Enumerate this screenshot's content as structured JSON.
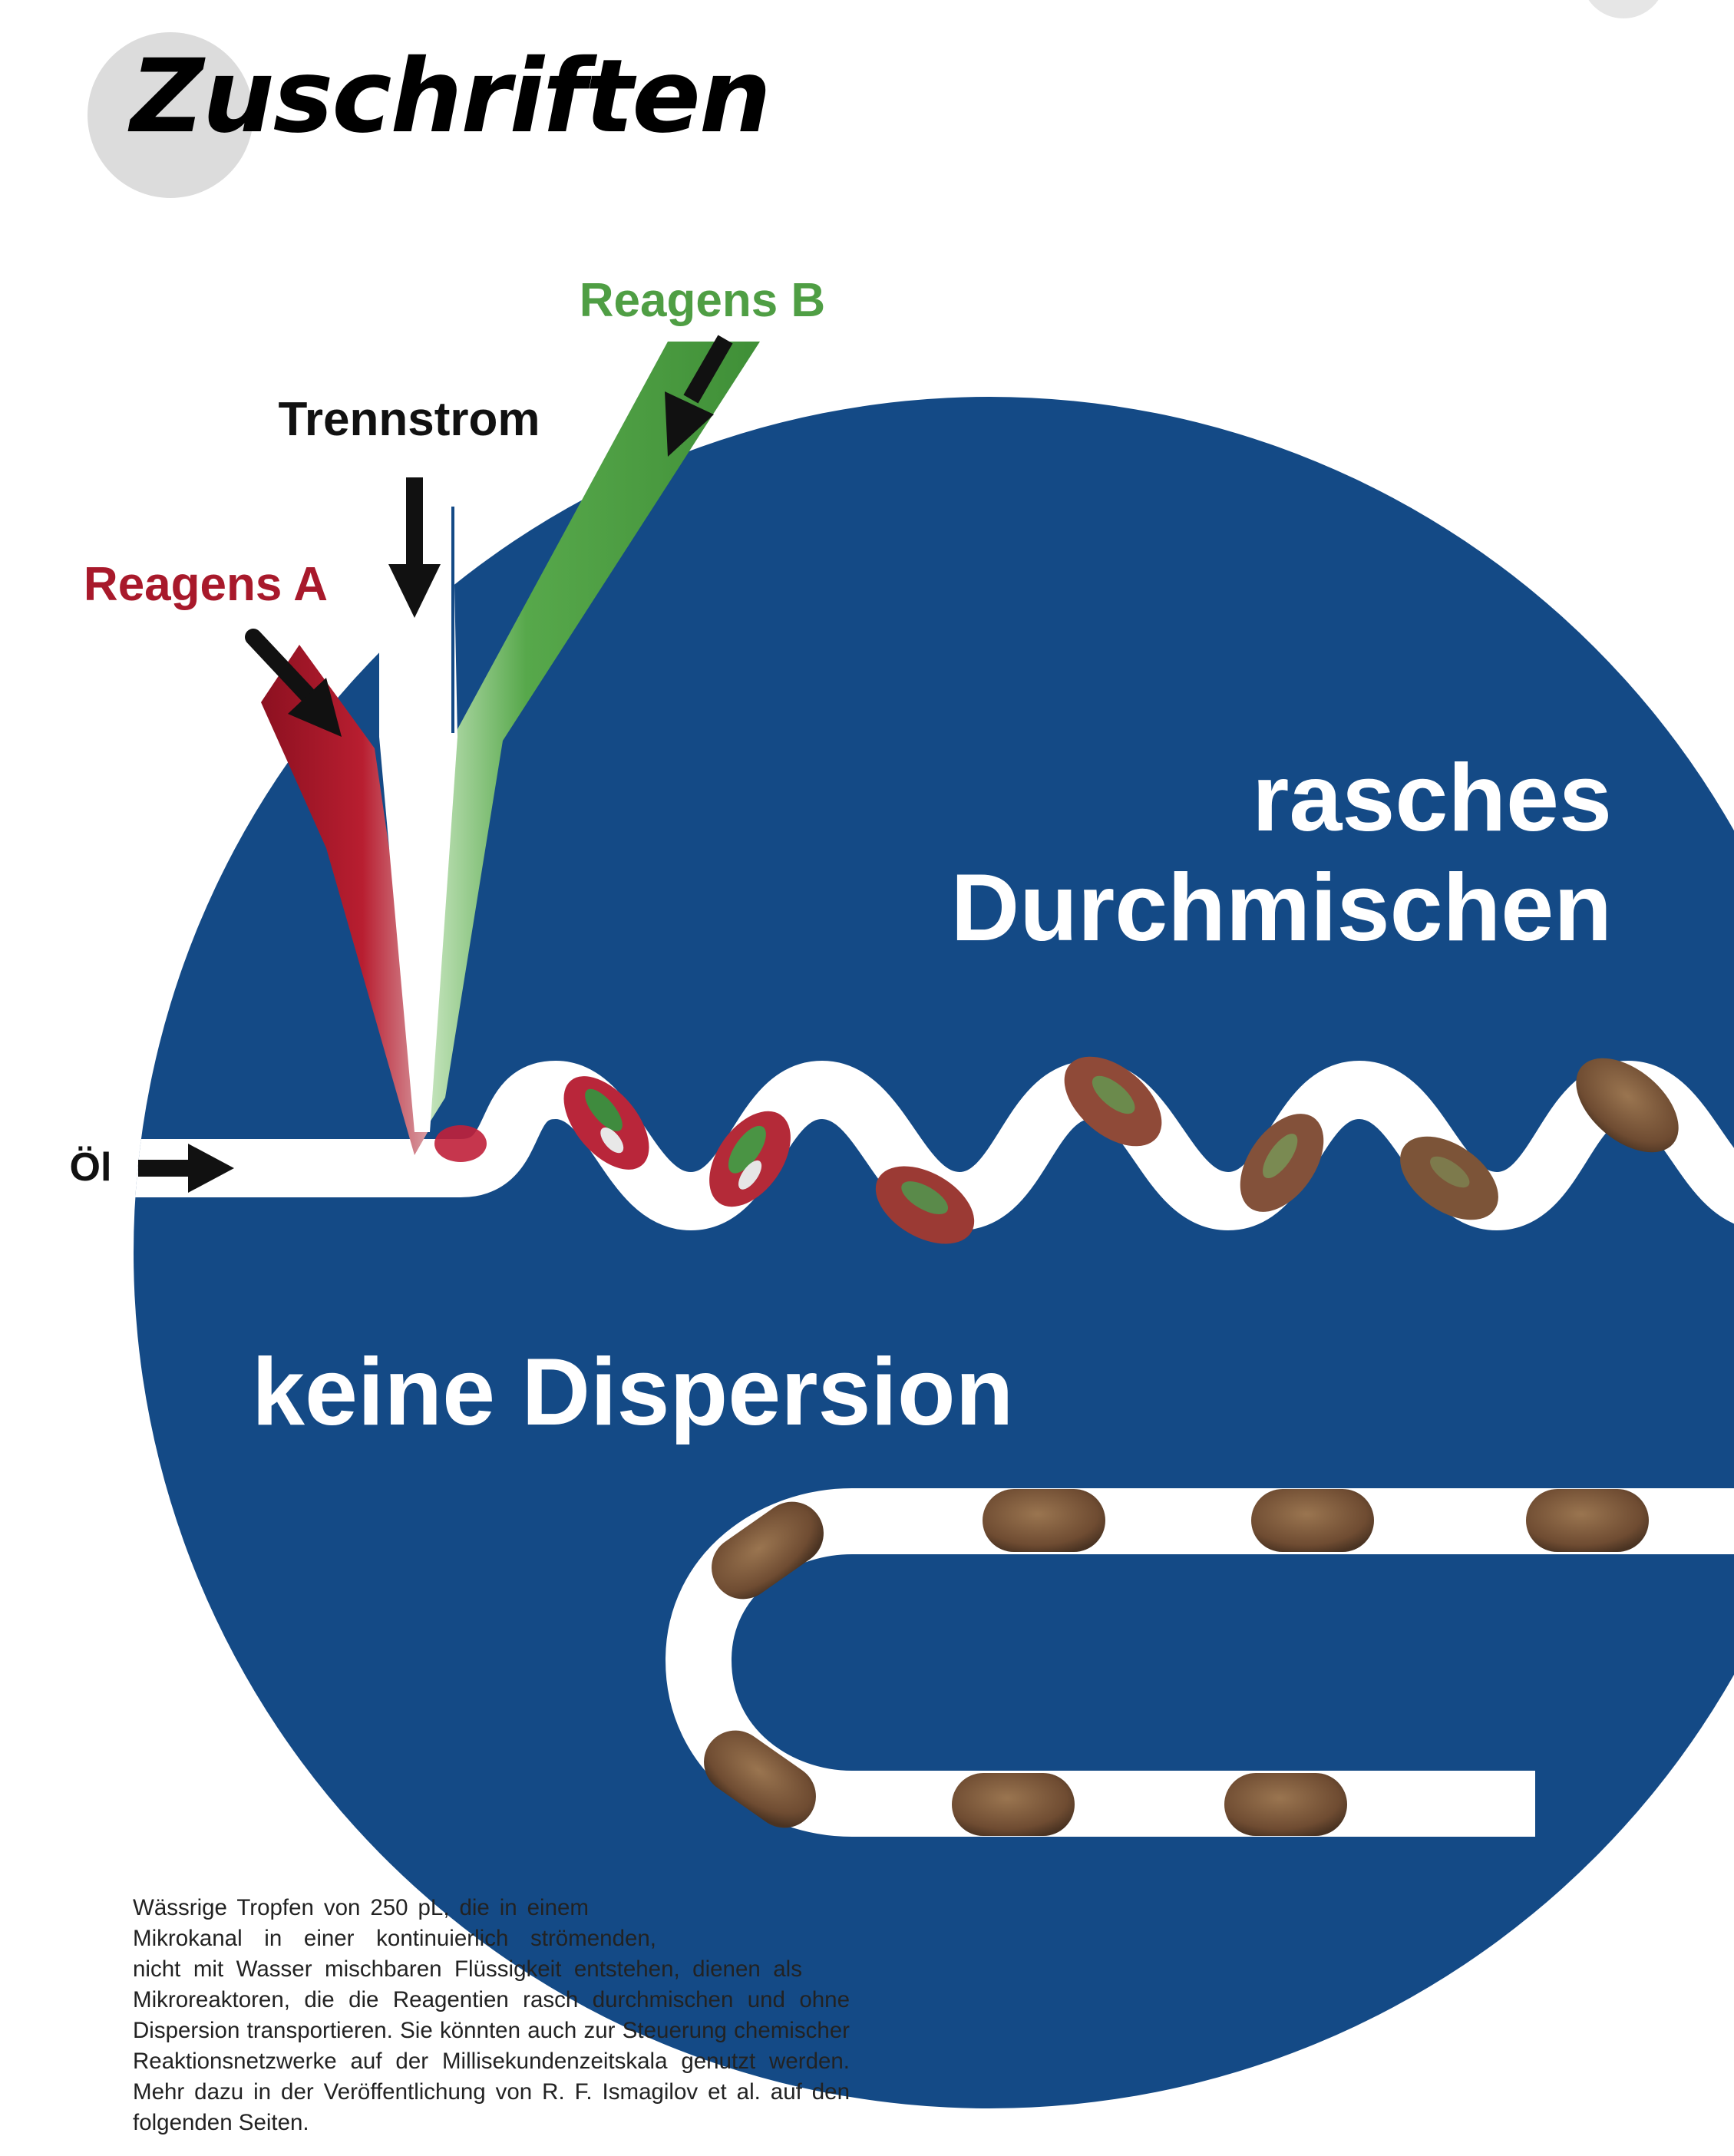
{
  "header": {
    "section_title": "Zuschriften"
  },
  "figure": {
    "colors": {
      "background": "#144a86",
      "channel": "#ffffff",
      "reagent_a": "#a8192b",
      "reagent_b": "#4f9e44",
      "separator": "#ffffff",
      "droplet": "#7a5638",
      "arrow": "#111111"
    },
    "labels": {
      "reagent_b": "Reagens B",
      "separator_stream": "Trennstrom",
      "reagent_a": "Reagens A",
      "oil": "Öl",
      "rapid_mixing_line1": "rasches",
      "rapid_mixing_line2": "Durchmischen",
      "no_dispersion": "keine Dispersion"
    }
  },
  "caption": {
    "lines": [
      "Wässrige Tropfen von 250 pL, die in einem",
      "Mikrokanal in einer kontinuierlich strömenden,",
      "nicht mit Wasser mischbaren Flüssigkeit entstehen, dienen als",
      "Mikroreaktoren, die die Reagentien rasch durchmischen und ohne",
      "Dispersion transportieren. Sie könnten auch zur Steuerung chemischer",
      "Reaktionsnetzwerke auf der Millisekundenzeitskala genutzt werden.",
      "Mehr dazu in der Veröffentlichung von R. F. Ismagilov et al. auf den",
      "folgenden Seiten."
    ]
  }
}
